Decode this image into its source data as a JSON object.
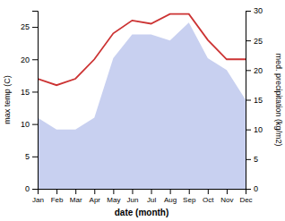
{
  "chart_data": {
    "type": "line",
    "categories": [
      "Jan",
      "Feb",
      "Mar",
      "Apr",
      "May",
      "Jun",
      "Jul",
      "Aug",
      "Sep",
      "Oct",
      "Nov",
      "Dec"
    ],
    "series": [
      {
        "type": "area",
        "axis": "y2",
        "color": "#c8d0f0",
        "values": [
          12.0,
          10.0,
          10.0,
          12.0,
          22.0,
          26.0,
          26.0,
          25.0,
          28.0,
          22.0,
          20.0,
          15.0
        ]
      },
      {
        "type": "line",
        "color": "#cc3333",
        "values": [
          17.0,
          16.0,
          17.0,
          20.0,
          24.0,
          26.0,
          25.5,
          27.0,
          27.0,
          23.0,
          20.0,
          20.0
        ]
      }
    ],
    "xlabel": "date (month)",
    "ylabel": "max temp (C)",
    "y2label": "med. precipitation (kg/m2)",
    "ylim": [
      0,
      27.5
    ],
    "yticks": [
      0,
      5,
      10,
      15,
      20,
      25
    ],
    "y2lim": [
      0,
      30
    ],
    "y2ticks": [
      0,
      5,
      10,
      15,
      20,
      25,
      30
    ]
  }
}
